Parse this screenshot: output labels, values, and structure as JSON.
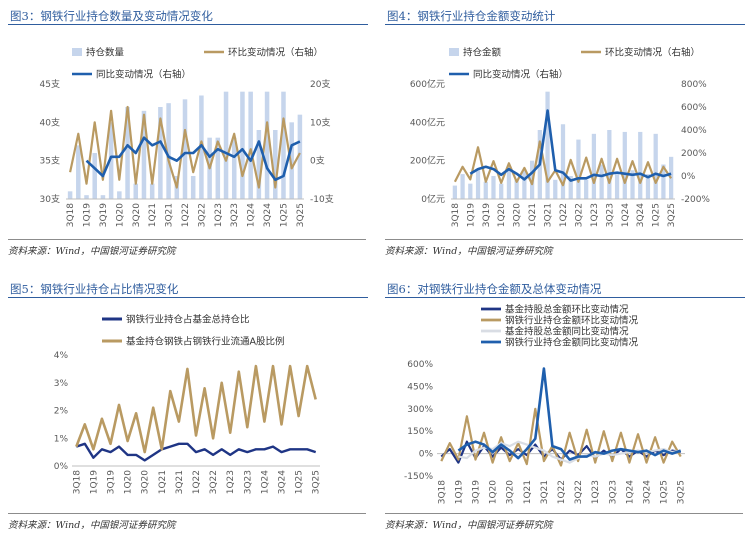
{
  "panels": [
    {
      "title": "图3：钢铁行业持仓数量及变动情况变化",
      "source": "资料来源：Wind，中国银河证券研究院"
    },
    {
      "title": "图4：钢铁行业持仓金额变动统计",
      "source": "资料来源：Wind，中国银河证券研究院"
    },
    {
      "title": "图5：钢铁行业持仓占比情况变化",
      "source": "资料来源：Wind，中国银河证券研究院"
    },
    {
      "title": "图6：对钢铁行业持仓金额及总体变动情况",
      "source": "资料来源：Wind，中国银河证券研究院"
    }
  ],
  "colors": {
    "bar": "#c6d5ec",
    "gold": "#b99a62",
    "blue": "#1f5fad",
    "navy": "#1f3585",
    "light": "#d9dde4"
  },
  "chart_data": [
    {
      "type": "bar",
      "title": "图3：钢铁行业持仓数量及变动情况变化",
      "categories": [
        "3Q18",
        "4Q18",
        "1Q19",
        "2Q19",
        "3Q19",
        "4Q19",
        "1Q20",
        "2Q20",
        "3Q20",
        "4Q20",
        "1Q21",
        "2Q21",
        "3Q21",
        "4Q21",
        "1Q22",
        "2Q22",
        "3Q22",
        "4Q22",
        "1Q23",
        "2Q23",
        "3Q23",
        "4Q23",
        "1Q24",
        "2Q24",
        "3Q24",
        "4Q24",
        "1Q25",
        "2Q25",
        "3Q25"
      ],
      "left_axis": {
        "ylim": [
          30,
          45
        ],
        "ticks": [
          "30支",
          "35支",
          "40支",
          "45支"
        ]
      },
      "right_axis": {
        "ylim": [
          -10,
          20
        ],
        "ticks": [
          "-10支",
          "0支",
          "10支",
          "20支"
        ]
      },
      "x_tick_labels": [
        "3Q18",
        "1Q19",
        "3Q19",
        "1Q20",
        "3Q20",
        "1Q21",
        "3Q21",
        "1Q22",
        "3Q22",
        "1Q23",
        "3Q23",
        "1Q24",
        "3Q24",
        "1Q25",
        "3Q25"
      ],
      "series": [
        {
          "name": "持仓数量",
          "kind": "bar",
          "axis": "left",
          "values": [
            31,
            37,
            30.5,
            36,
            30.5,
            40,
            31,
            42,
            32,
            41.5,
            32,
            42,
            42.5,
            33,
            43,
            33,
            43.5,
            38,
            38,
            44,
            38,
            44,
            44,
            39,
            44,
            39,
            44,
            40,
            41
          ]
        },
        {
          "name": "环比变动情况（右轴）",
          "kind": "line",
          "axis": "right",
          "values": [
            -3,
            7,
            -6,
            10,
            -5,
            13,
            -5,
            14,
            -6,
            12,
            -6,
            11,
            0,
            -7,
            8,
            -3,
            5,
            -2,
            5,
            0,
            7,
            -4,
            3,
            -7,
            10,
            -7,
            11,
            -2,
            2
          ]
        },
        {
          "name": "同比变动情况（右轴）",
          "kind": "line",
          "axis": "right",
          "values": [
            null,
            null,
            0,
            -2,
            -4,
            1,
            1,
            4,
            2,
            6,
            4,
            5,
            1,
            0,
            2,
            2,
            4,
            1,
            3,
            2,
            1,
            3,
            0,
            5,
            -2,
            -5,
            -4,
            4,
            5
          ]
        }
      ]
    },
    {
      "type": "bar",
      "title": "图4：钢铁行业持仓金额变动统计",
      "categories": [
        "3Q18",
        "4Q18",
        "1Q19",
        "2Q19",
        "3Q19",
        "4Q19",
        "1Q20",
        "2Q20",
        "3Q20",
        "4Q20",
        "1Q21",
        "2Q21",
        "3Q21",
        "4Q21",
        "1Q22",
        "2Q22",
        "3Q22",
        "4Q22",
        "1Q23",
        "2Q23",
        "3Q23",
        "4Q23",
        "1Q24",
        "2Q24",
        "3Q24",
        "4Q24",
        "1Q25",
        "2Q25",
        "3Q25"
      ],
      "left_axis": {
        "ylim": [
          0,
          600
        ],
        "ticks": [
          "0亿元",
          "200亿元",
          "400亿元",
          "600亿元"
        ]
      },
      "right_axis": {
        "ylim": [
          -200,
          800
        ],
        "ticks": [
          "-200%",
          "0%",
          "200%",
          "400%",
          "600%",
          "800%"
        ]
      },
      "x_tick_labels": [
        "3Q18",
        "1Q19",
        "3Q19",
        "1Q20",
        "3Q20",
        "1Q21",
        "3Q21",
        "1Q22",
        "3Q22",
        "1Q23",
        "3Q23",
        "1Q24",
        "3Q24",
        "1Q25",
        "3Q25"
      ],
      "series": [
        {
          "name": "持仓金额",
          "kind": "bar",
          "axis": "left",
          "values": [
            70,
            130,
            80,
            150,
            90,
            120,
            80,
            170,
            100,
            150,
            200,
            360,
            560,
            100,
            390,
            120,
            310,
            100,
            340,
            180,
            360,
            130,
            350,
            150,
            350,
            130,
            340,
            180,
            220
          ]
        },
        {
          "name": "环比变动情况（右轴）",
          "kind": "line",
          "axis": "right",
          "values": [
            -50,
            80,
            -30,
            250,
            -50,
            130,
            -60,
            110,
            -50,
            70,
            -70,
            300,
            -50,
            50,
            -80,
            140,
            -50,
            160,
            -60,
            150,
            -60,
            150,
            -60,
            130,
            -60,
            120,
            -60,
            80,
            -20
          ]
        },
        {
          "name": "同比变动情况（右轴）",
          "kind": "line",
          "axis": "right",
          "values": [
            null,
            null,
            20,
            60,
            80,
            60,
            10,
            60,
            20,
            -30,
            30,
            100,
            570,
            50,
            30,
            -40,
            -20,
            -20,
            10,
            0,
            20,
            30,
            20,
            10,
            20,
            -10,
            20,
            0,
            20
          ]
        }
      ]
    },
    {
      "type": "line",
      "title": "图5：钢铁行业持仓占比情况变化",
      "categories": [
        "3Q18",
        "4Q18",
        "1Q19",
        "2Q19",
        "3Q19",
        "4Q19",
        "1Q20",
        "2Q20",
        "3Q20",
        "4Q20",
        "1Q21",
        "2Q21",
        "3Q21",
        "4Q21",
        "1Q22",
        "2Q22",
        "3Q22",
        "4Q22",
        "1Q23",
        "2Q23",
        "3Q23",
        "4Q23",
        "1Q24",
        "2Q24",
        "3Q24",
        "4Q24",
        "1Q25",
        "2Q25",
        "3Q25"
      ],
      "axis": {
        "ylim": [
          0,
          4
        ],
        "ticks": [
          "0%",
          "1%",
          "2%",
          "3%",
          "4%"
        ]
      },
      "x_tick_labels": [
        "3Q18",
        "1Q19",
        "3Q19",
        "1Q20",
        "3Q20",
        "1Q21",
        "3Q21",
        "1Q22",
        "3Q22",
        "1Q23",
        "3Q23",
        "1Q24",
        "3Q24",
        "1Q25",
        "3Q25"
      ],
      "series": [
        {
          "name": "钢铁行业持仓占基金总持仓比",
          "values": [
            0.7,
            0.8,
            0.3,
            0.6,
            0.5,
            0.7,
            0.4,
            0.4,
            0.2,
            0.4,
            0.6,
            0.7,
            0.8,
            0.8,
            0.5,
            0.6,
            0.4,
            0.6,
            0.4,
            0.6,
            0.5,
            0.6,
            0.6,
            0.7,
            0.5,
            0.6,
            0.6,
            0.6,
            0.5
          ]
        },
        {
          "name": "基金持仓钢铁占钢铁行业流通A股比例",
          "values": [
            0.7,
            1.5,
            0.6,
            1.7,
            0.8,
            2.2,
            0.9,
            1.9,
            0.5,
            2.1,
            0.6,
            2.7,
            1.6,
            3.5,
            1.1,
            2.8,
            1.0,
            3.0,
            1.2,
            3.4,
            1.4,
            3.6,
            1.6,
            3.6,
            1.5,
            3.6,
            1.8,
            3.6,
            2.4
          ]
        }
      ]
    },
    {
      "type": "line",
      "title": "图6：对钢铁行业持仓金额及总体变动情况",
      "categories": [
        "3Q18",
        "4Q18",
        "1Q19",
        "2Q19",
        "3Q19",
        "4Q19",
        "1Q20",
        "2Q20",
        "3Q20",
        "4Q20",
        "1Q21",
        "2Q21",
        "3Q21",
        "4Q21",
        "1Q22",
        "2Q22",
        "3Q22",
        "4Q22",
        "1Q23",
        "2Q23",
        "3Q23",
        "4Q23",
        "1Q24",
        "2Q24",
        "3Q24",
        "4Q24",
        "1Q25",
        "2Q25",
        "3Q25"
      ],
      "axis": {
        "ylim": [
          -150,
          600
        ],
        "ticks": [
          "-150%",
          "0%",
          "150%",
          "300%",
          "450%",
          "600%"
        ]
      },
      "x_tick_labels": [
        "3Q18",
        "1Q19",
        "3Q19",
        "1Q20",
        "3Q20",
        "1Q21",
        "3Q21",
        "1Q22",
        "3Q22",
        "1Q23",
        "3Q23",
        "1Q24",
        "3Q24",
        "1Q25",
        "3Q25"
      ],
      "series": [
        {
          "name": "基金持股总金额环比变动情况",
          "color": "navy",
          "values": [
            -20,
            30,
            -60,
            80,
            -30,
            50,
            -20,
            40,
            -10,
            30,
            -10,
            60,
            -20,
            30,
            -40,
            20,
            -10,
            50,
            -30,
            20,
            -20,
            30,
            -20,
            20,
            -20,
            20,
            -10,
            20,
            10
          ]
        },
        {
          "name": "钢铁行业持仓金额环比变动情况",
          "color": "gold",
          "values": [
            -50,
            70,
            -40,
            250,
            -40,
            140,
            -60,
            110,
            -50,
            70,
            -70,
            300,
            -50,
            50,
            -80,
            140,
            -50,
            160,
            -60,
            150,
            -50,
            140,
            -60,
            130,
            -60,
            110,
            -60,
            80,
            -20
          ]
        },
        {
          "name": "基金持股总金额同比变动情况",
          "color": "light",
          "values": [
            null,
            null,
            -20,
            -30,
            20,
            40,
            30,
            70,
            50,
            80,
            60,
            40,
            20,
            -20,
            -40,
            -60,
            -30,
            -10,
            -20,
            0,
            -10,
            0,
            10,
            20,
            10,
            20,
            30,
            10,
            20
          ]
        },
        {
          "name": "钢铁行业持仓金额同比变动情况",
          "color": "blue",
          "values": [
            null,
            null,
            20,
            60,
            80,
            60,
            10,
            60,
            20,
            -30,
            30,
            100,
            570,
            50,
            30,
            -40,
            -20,
            -20,
            10,
            0,
            20,
            30,
            20,
            10,
            20,
            -10,
            20,
            0,
            20
          ]
        }
      ]
    }
  ]
}
